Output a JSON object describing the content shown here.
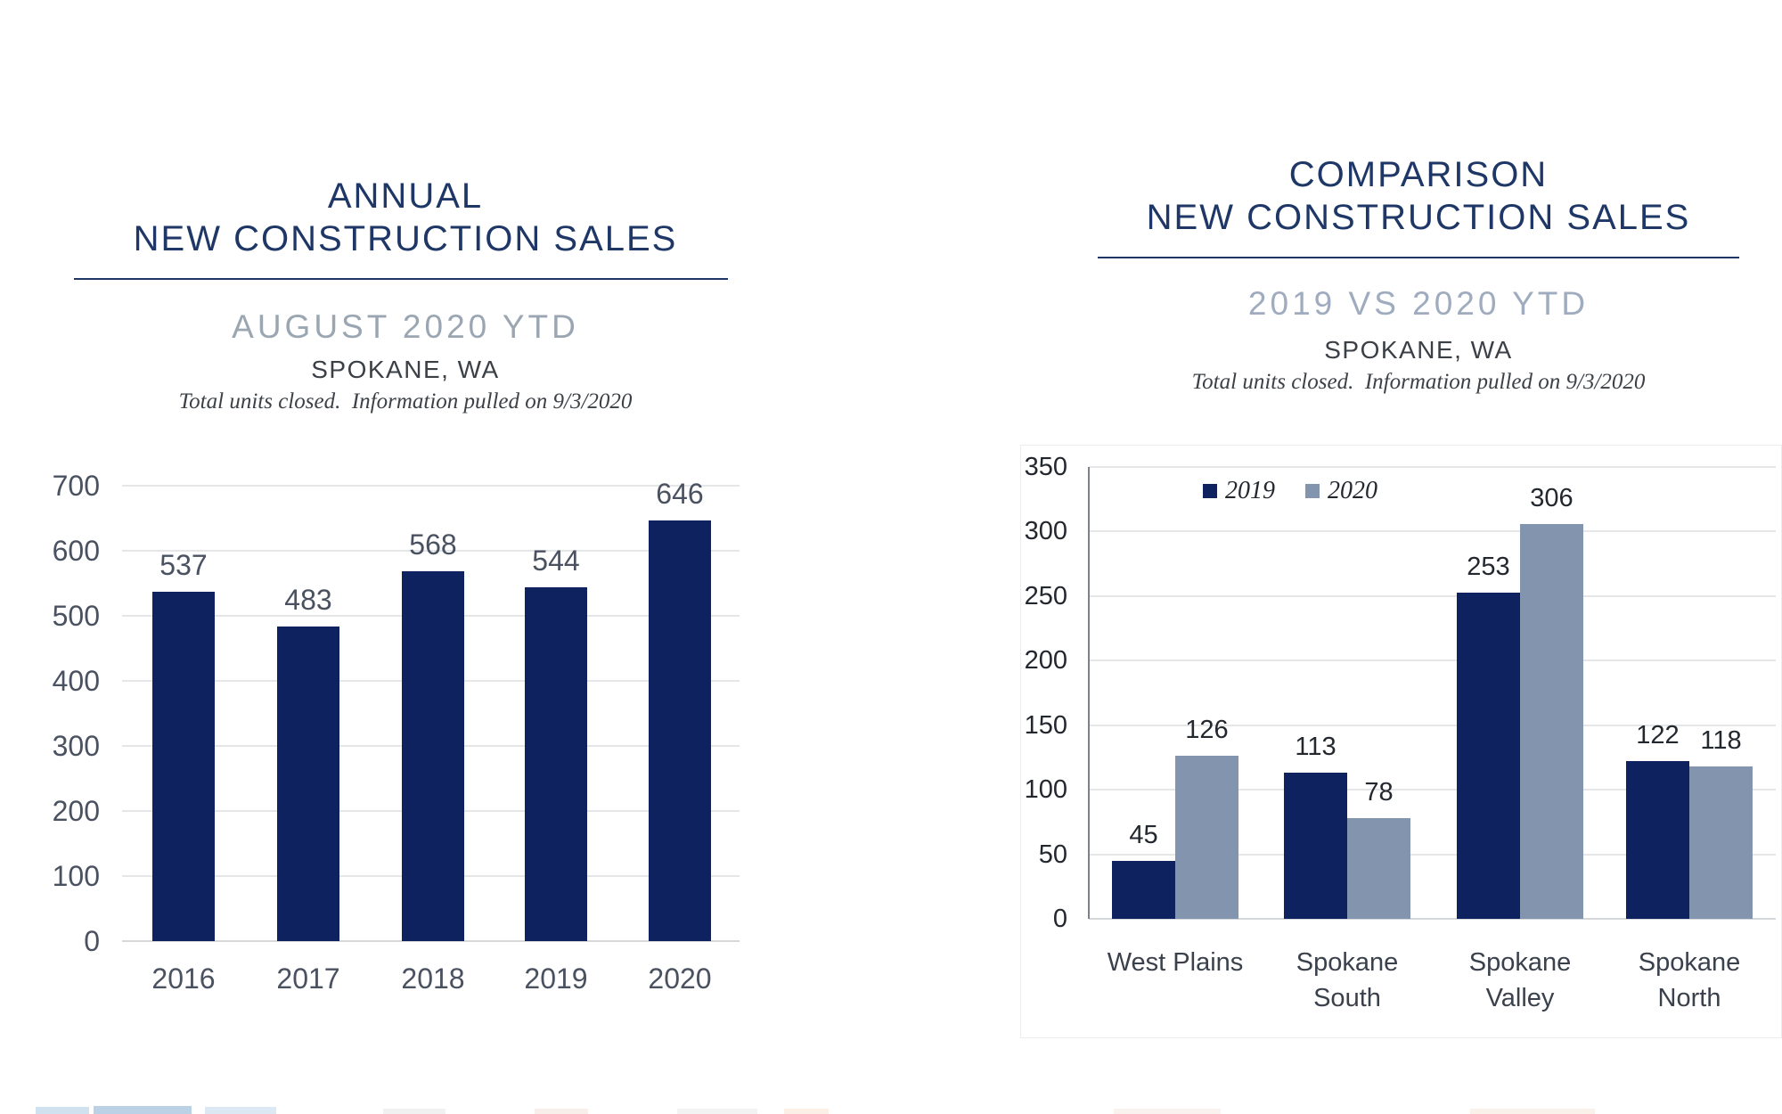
{
  "colors": {
    "navy": "#0e2260",
    "blue_gray": "#8294ae",
    "title_navy": "#1e3766",
    "subtitle_gray": "#9aa6b2",
    "subtitle_blue_gray": "#9fabbe",
    "heading_dark": "#3b4046",
    "note_dark": "#3c4147",
    "axis_text_left": "#4a5160",
    "axis_text_right": "#23272e",
    "category_text": "#3a414c",
    "gridline": "#e4e6e8",
    "baseline": "#d5d8da",
    "axis_line": "#7d8288",
    "chart_border": "#ededed"
  },
  "chart_data": [
    {
      "type": "bar",
      "title_lines": [
        "ANNUAL",
        "NEW CONSTRUCTION SALES"
      ],
      "title": "ANNUAL NEW CONSTRUCTION SALES",
      "subtitle": "AUGUST 2020 YTD",
      "location": "SPOKANE, WA",
      "note": "Total units closed.  Information pulled on 9/3/2020",
      "categories": [
        "2016",
        "2017",
        "2018",
        "2019",
        "2020"
      ],
      "values": [
        537,
        483,
        568,
        544,
        646
      ],
      "xlabel": "",
      "ylabel": "",
      "ylim": [
        0,
        700
      ],
      "yticks": [
        0,
        100,
        200,
        300,
        400,
        500,
        600,
        700
      ],
      "grid": true,
      "data_labels": true,
      "legend": null
    },
    {
      "type": "grouped-bar",
      "title_lines": [
        "COMPARISON",
        "NEW CONSTRUCTION SALES"
      ],
      "title": "COMPARISON NEW CONSTRUCTION SALES",
      "subtitle": "2019 VS 2020 YTD",
      "location": "SPOKANE, WA",
      "note": "Total units closed.  Information pulled on 9/3/2020",
      "categories": [
        "West Plains",
        "Spokane South",
        "Spokane Valley",
        "Spokane North"
      ],
      "series": [
        {
          "name": "2019",
          "values": [
            45,
            113,
            253,
            122
          ],
          "color_key": "navy"
        },
        {
          "name": "2020",
          "values": [
            126,
            78,
            306,
            118
          ],
          "color_key": "blue_gray"
        }
      ],
      "xlabel": "",
      "ylabel": "",
      "ylim": [
        0,
        350
      ],
      "yticks": [
        0,
        50,
        100,
        150,
        200,
        250,
        300,
        350
      ],
      "grid": true,
      "data_labels": true,
      "legend_position": "top-inside"
    }
  ]
}
